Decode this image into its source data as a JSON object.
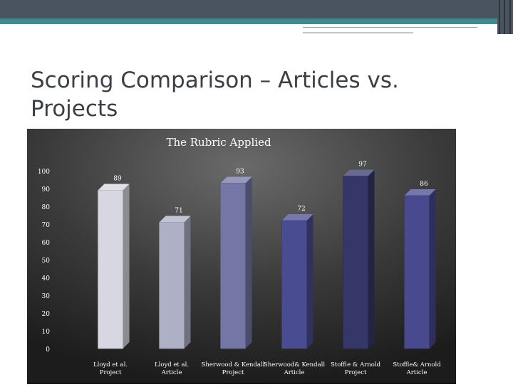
{
  "slide": {
    "title": "Scoring Comparison – Articles vs. Projects"
  },
  "colors": {
    "topbar": "#4a5360",
    "accent_teal": "#3f8a8e",
    "chart_bg": "#2b2b2b",
    "bars": [
      "#d6d7e0",
      "#aeb0c6",
      "#7476a6",
      "#4a4c92",
      "#353768",
      "#48498e"
    ]
  },
  "chart_data": {
    "type": "bar",
    "title": "The Rubric Applied",
    "categories": [
      "Lloyd et al. Project",
      "Lloyd et al. Article",
      "Sherwood & Kendall Project",
      "Sherwood& Kendall Article",
      "Stoffle & Arnold Project",
      "Stoffle& Arnold Article"
    ],
    "values": [
      89,
      71,
      93,
      72,
      97,
      86
    ],
    "data_labels": [
      "89",
      "71",
      "93",
      "72",
      "97",
      "86"
    ],
    "yticks": [
      "0",
      "10",
      "20",
      "30",
      "40",
      "50",
      "60",
      "70",
      "80",
      "90",
      "100"
    ],
    "ylim": [
      0,
      100
    ],
    "grid": false,
    "legend": "none"
  }
}
